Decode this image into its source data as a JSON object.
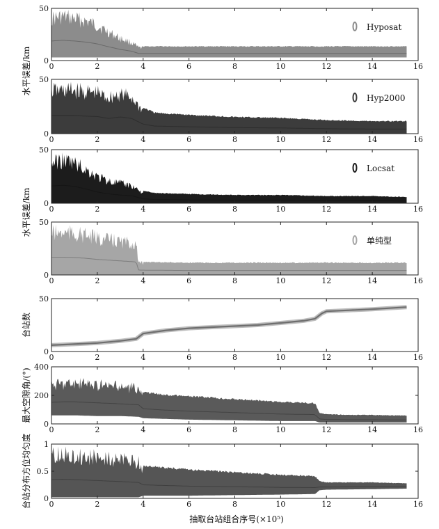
{
  "x_axis": {
    "label": "抽取台站组合序号(×10⁵)",
    "ticks": [
      "0",
      "2",
      "4",
      "6",
      "8",
      "10",
      "12",
      "14",
      "16"
    ],
    "range": [
      0,
      16
    ]
  },
  "panels": [
    {
      "id": "hyposat",
      "legend": "Hyposat",
      "ylabel": "",
      "yticks": [
        "0",
        "50"
      ],
      "ylim": [
        0,
        50
      ],
      "color": "#8c8c8c",
      "chart_data": {
        "type": "area",
        "x": [
          0,
          0.5,
          1.0,
          1.5,
          2.0,
          2.5,
          3.0,
          3.5,
          3.8,
          4.0,
          6,
          8,
          10,
          11.7,
          12,
          14,
          15.5
        ],
        "upper": [
          48,
          50,
          48,
          45,
          40,
          32,
          25,
          20,
          14,
          14,
          14,
          14,
          14,
          14,
          14,
          14,
          14
        ],
        "lower": [
          3,
          3,
          3,
          3,
          3,
          3,
          3,
          3,
          3,
          3,
          3,
          3,
          3,
          3,
          3,
          3,
          3
        ]
      }
    },
    {
      "id": "hyp2000",
      "legend": "Hyp2000",
      "ylabel": "",
      "yticks": [
        "0",
        "50"
      ],
      "ylim": [
        0,
        50
      ],
      "color": "#3c3c3c",
      "chart_data": {
        "type": "area",
        "x": [
          0,
          0.5,
          1.0,
          1.5,
          2.0,
          2.5,
          3.0,
          3.5,
          4.0,
          4.5,
          6,
          8,
          10,
          12,
          14,
          15.5
        ],
        "upper": [
          48,
          48,
          48,
          46,
          45,
          40,
          44,
          40,
          25,
          20,
          18,
          16,
          15,
          13,
          12,
          12
        ],
        "lower": [
          0,
          0,
          0,
          0,
          0,
          0,
          0,
          0,
          0,
          0,
          0,
          0,
          0,
          0,
          0,
          0
        ]
      }
    },
    {
      "id": "locsat",
      "legend": "Locsat",
      "ylabel": "水平误差/km",
      "yticks": [
        "0",
        "50"
      ],
      "ylim": [
        0,
        50
      ],
      "color": "#1c1c1c",
      "chart_data": {
        "type": "area",
        "x": [
          0,
          0.5,
          1.0,
          1.5,
          2.0,
          2.5,
          3.0,
          3.5,
          4.0,
          4.5,
          6,
          8,
          10,
          12,
          14,
          15.5
        ],
        "upper": [
          46,
          48,
          45,
          38,
          30,
          25,
          22,
          20,
          12,
          10,
          9,
          8,
          8,
          7,
          7,
          6
        ],
        "lower": [
          0,
          0,
          0,
          0,
          0,
          0,
          0,
          0,
          0,
          0,
          0,
          0,
          0,
          0,
          0,
          0
        ]
      }
    },
    {
      "id": "danchun",
      "legend": "单纯型",
      "ylabel": "",
      "yticks": [
        "0",
        "50"
      ],
      "ylim": [
        0,
        50
      ],
      "color": "#a6a6a6",
      "chart_data": {
        "type": "area",
        "x": [
          0,
          0.5,
          1.0,
          1.5,
          2.0,
          2.5,
          3.0,
          3.5,
          3.7,
          3.8,
          6,
          8,
          10,
          12,
          14,
          15.5
        ],
        "upper": [
          48,
          48,
          47,
          45,
          42,
          40,
          38,
          36,
          35,
          13,
          12,
          12,
          12,
          12,
          12,
          12
        ],
        "lower": [
          0,
          0,
          0,
          0,
          0,
          0,
          0,
          0,
          0,
          0,
          0,
          0,
          0,
          0,
          0,
          0
        ]
      }
    },
    {
      "id": "station-count",
      "legend": "",
      "ylabel": "台站数",
      "yticks": [
        "0",
        "50"
      ],
      "ylim": [
        0,
        50
      ],
      "color": "#6e6e6e",
      "chart_data": {
        "type": "line",
        "x": [
          0,
          1,
          2,
          3,
          3.7,
          4.0,
          5,
          6,
          7,
          8,
          9,
          10,
          11,
          11.5,
          11.8,
          12,
          13,
          14,
          15.5
        ],
        "values": [
          6,
          7,
          8,
          10,
          12,
          17,
          20,
          22,
          23,
          24,
          25,
          27,
          29,
          31,
          36,
          38,
          39,
          40,
          42
        ]
      }
    },
    {
      "id": "max-gap",
      "legend": "",
      "ylabel": "最大空隙角/(°)",
      "yticks": [
        "0",
        "200",
        "400"
      ],
      "ylim": [
        0,
        400
      ],
      "color": "#5a5a5a",
      "chart_data": {
        "type": "area",
        "x": [
          0,
          0.5,
          1,
          2,
          3,
          3.8,
          4.0,
          5,
          6,
          8,
          10,
          11.5,
          11.7,
          12,
          13,
          14,
          15.5
        ],
        "upper": [
          320,
          330,
          330,
          320,
          300,
          290,
          230,
          210,
          200,
          180,
          160,
          150,
          80,
          70,
          65,
          65,
          60
        ],
        "lower": [
          60,
          60,
          60,
          55,
          55,
          50,
          40,
          35,
          30,
          25,
          20,
          20,
          10,
          10,
          10,
          10,
          10
        ]
      }
    },
    {
      "id": "azimuth-uniformity",
      "legend": "",
      "ylabel": "台站分布方位均匀度",
      "yticks": [
        "0",
        "0.5",
        "1"
      ],
      "ylim": [
        0,
        1
      ],
      "color": "#555555",
      "chart_data": {
        "type": "area",
        "x": [
          0,
          0.5,
          1,
          2,
          3,
          3.8,
          4.0,
          6,
          8,
          10,
          11.5,
          11.7,
          12,
          14,
          15.5
        ],
        "upper": [
          0.95,
          0.97,
          0.95,
          0.9,
          0.85,
          0.8,
          0.62,
          0.55,
          0.5,
          0.45,
          0.42,
          0.32,
          0.3,
          0.3,
          0.28
        ],
        "lower": [
          0.02,
          0.02,
          0.02,
          0.02,
          0.02,
          0.02,
          0.05,
          0.05,
          0.06,
          0.07,
          0.08,
          0.15,
          0.16,
          0.17,
          0.18
        ]
      }
    }
  ]
}
